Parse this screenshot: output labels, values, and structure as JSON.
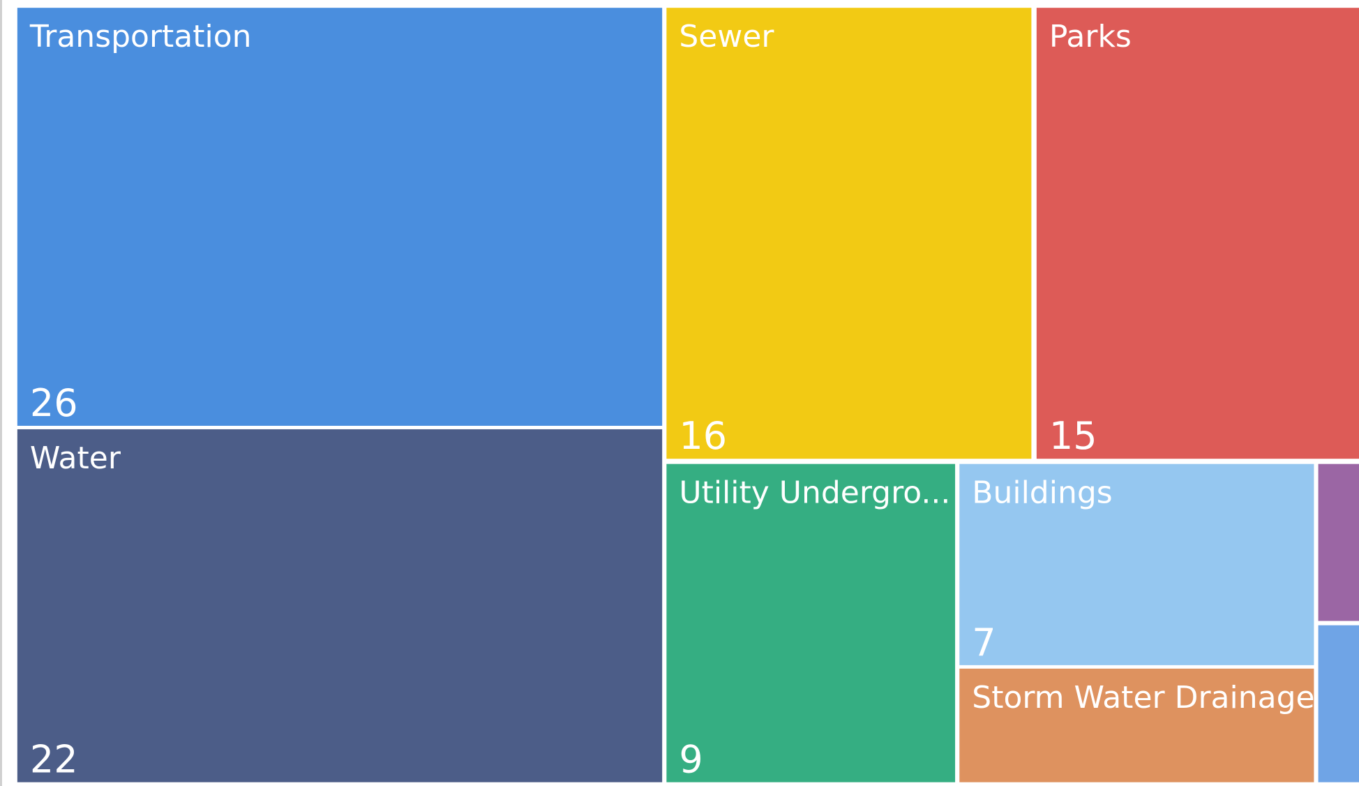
{
  "chart_data": {
    "type": "treemap",
    "categories": [
      "Transportation",
      "Water",
      "Sewer",
      "Parks",
      "Utility Undergro...",
      "Buildings",
      "Storm Water Drainage",
      null,
      null
    ],
    "values": [
      26,
      22,
      16,
      15,
      9,
      7,
      4,
      1,
      1
    ],
    "colors": [
      "#4a8ede",
      "#4c5d88",
      "#f2ca14",
      "#dd5b57",
      "#35ae82",
      "#95c7f0",
      "#de925f",
      "#9b66a4",
      "#6fa4e6"
    ]
  }
}
